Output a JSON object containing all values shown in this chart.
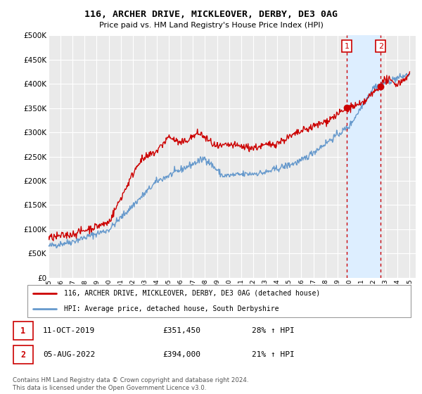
{
  "title": "116, ARCHER DRIVE, MICKLEOVER, DERBY, DE3 0AG",
  "subtitle": "Price paid vs. HM Land Registry's House Price Index (HPI)",
  "ytick_values": [
    0,
    50000,
    100000,
    150000,
    200000,
    250000,
    300000,
    350000,
    400000,
    450000,
    500000
  ],
  "ylim": [
    0,
    500000
  ],
  "xlim_start": 1995.0,
  "xlim_end": 2025.5,
  "background_color": "#ffffff",
  "plot_background": "#eaeaea",
  "grid_color": "#ffffff",
  "red_line_color": "#cc0000",
  "blue_line_color": "#6699cc",
  "vline_color": "#cc0000",
  "shade_color": "#ddeeff",
  "marker1_x": 2019.78,
  "marker1_y": 351450,
  "marker2_x": 2022.59,
  "marker2_y": 394000,
  "marker1_label": "1",
  "marker2_label": "2",
  "legend_line1": "116, ARCHER DRIVE, MICKLEOVER, DERBY, DE3 0AG (detached house)",
  "legend_line2": "HPI: Average price, detached house, South Derbyshire",
  "annotation1_num": "1",
  "annotation1_date": "11-OCT-2019",
  "annotation1_price": "£351,450",
  "annotation1_hpi": "28% ↑ HPI",
  "annotation2_num": "2",
  "annotation2_date": "05-AUG-2022",
  "annotation2_price": "£394,000",
  "annotation2_hpi": "21% ↑ HPI",
  "footer": "Contains HM Land Registry data © Crown copyright and database right 2024.\nThis data is licensed under the Open Government Licence v3.0.",
  "xtick_years": [
    1995,
    1996,
    1997,
    1998,
    1999,
    2000,
    2001,
    2002,
    2003,
    2004,
    2005,
    2006,
    2007,
    2008,
    2009,
    2010,
    2011,
    2012,
    2013,
    2014,
    2015,
    2016,
    2017,
    2018,
    2019,
    2020,
    2021,
    2022,
    2023,
    2024,
    2025
  ]
}
